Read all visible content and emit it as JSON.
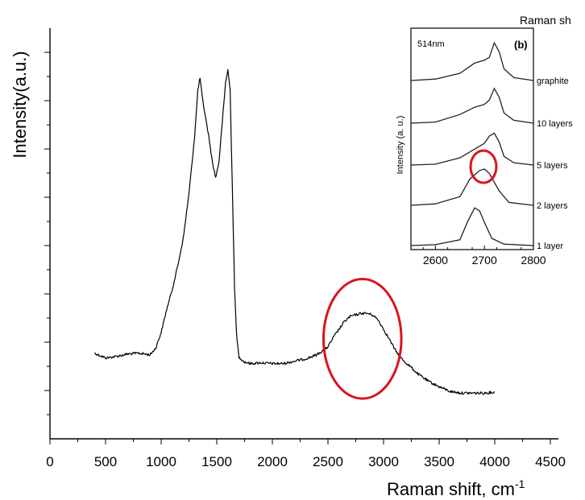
{
  "chart_data": [
    {
      "type": "line",
      "xlabel": "Raman shift, cm",
      "xlabel_sup": "-1",
      "ylabel": "Intensity(a.u.)",
      "xlim": [
        0,
        4500
      ],
      "x_ticks": [
        "0",
        "500",
        "1000",
        "1500",
        "2000",
        "2500",
        "3000",
        "3500",
        "4000",
        "4500"
      ],
      "y_ticks_labeled": false,
      "grid": false,
      "series": [
        {
          "x": [
            400,
            500,
            600,
            700,
            800,
            900,
            950,
            1000,
            1050,
            1100,
            1150,
            1200,
            1250,
            1300,
            1330,
            1350,
            1370,
            1400,
            1430,
            1460,
            1490,
            1520,
            1550,
            1580,
            1600,
            1620,
            1640,
            1660,
            1680,
            1700,
            1750,
            1800,
            1900,
            2000,
            2100,
            2200,
            2300,
            2400,
            2500,
            2550,
            2600,
            2650,
            2700,
            2750,
            2800,
            2850,
            2900,
            2950,
            3000,
            3050,
            3100,
            3150,
            3200,
            3250,
            3300,
            3400,
            3500,
            3600,
            3700,
            3800,
            3900,
            4000
          ],
          "y": [
            1.0,
            0.4,
            0.6,
            0.9,
            1.0,
            0.8,
            1.6,
            3.6,
            6.5,
            9.0,
            12.0,
            15.5,
            21.0,
            28.0,
            34.0,
            35.5,
            33.0,
            30.5,
            28.0,
            25.0,
            23.0,
            25.0,
            30.0,
            35.0,
            36.5,
            34.0,
            22.0,
            9.0,
            3.0,
            0.5,
            -0.1,
            -0.3,
            -0.2,
            -0.3,
            -0.3,
            0.0,
            0.3,
            0.8,
            1.8,
            3.0,
            4.0,
            5.0,
            5.6,
            5.8,
            6.0,
            6.0,
            5.8,
            5.2,
            4.0,
            2.8,
            1.5,
            0.5,
            -0.2,
            -0.8,
            -1.5,
            -2.5,
            -3.2,
            -3.8,
            -4.0,
            -4.0,
            -4.0,
            -3.9
          ]
        }
      ],
      "annotations": [
        {
          "type": "ellipse",
          "color": "#d9151b",
          "center_x": 2810,
          "center_y": 2.8,
          "rx": 350,
          "ry": 7.5
        }
      ]
    },
    {
      "type": "line",
      "panel_label": "(b)",
      "wavelength_label": "514nm",
      "title_partial": "Raman sh",
      "ylabel": "Intensity (a. u.)",
      "xlim": [
        2550,
        2800
      ],
      "x_ticks": [
        "2600",
        "2700",
        "2800"
      ],
      "series": [
        {
          "name": "graphite",
          "x": [
            2550,
            2600,
            2650,
            2680,
            2700,
            2710,
            2720,
            2730,
            2740,
            2760,
            2800
          ],
          "y": [
            0,
            0.5,
            2.5,
            6,
            7,
            8,
            13,
            10,
            4,
            1,
            0
          ]
        },
        {
          "name": "10 layers",
          "x": [
            2550,
            2600,
            2650,
            2680,
            2700,
            2710,
            2720,
            2730,
            2740,
            2760,
            2800
          ],
          "y": [
            0,
            0.4,
            3,
            5.5,
            6.5,
            8,
            12,
            9,
            3.5,
            1,
            0
          ]
        },
        {
          "name": "5 layers",
          "x": [
            2550,
            2600,
            2650,
            2680,
            2700,
            2710,
            2720,
            2730,
            2740,
            2760,
            2800
          ],
          "y": [
            0,
            0.3,
            2.5,
            5.5,
            7.5,
            10,
            11,
            8,
            3,
            0.8,
            0
          ]
        },
        {
          "name": "2 layers",
          "x": [
            2550,
            2600,
            2650,
            2670,
            2690,
            2700,
            2710,
            2730,
            2750,
            2800
          ],
          "y": [
            0,
            0.5,
            3,
            9,
            12,
            12.5,
            11,
            5,
            1,
            0
          ]
        },
        {
          "name": "1 layer",
          "x": [
            2550,
            2600,
            2650,
            2665,
            2680,
            2690,
            2700,
            2715,
            2740,
            2800
          ],
          "y": [
            0,
            0.3,
            2,
            8,
            13,
            12,
            8,
            2.5,
            0.5,
            0
          ]
        }
      ],
      "annotations": [
        {
          "type": "circle",
          "color": "#d9151b",
          "center_x": 2698,
          "series": "2 layers"
        }
      ]
    }
  ]
}
